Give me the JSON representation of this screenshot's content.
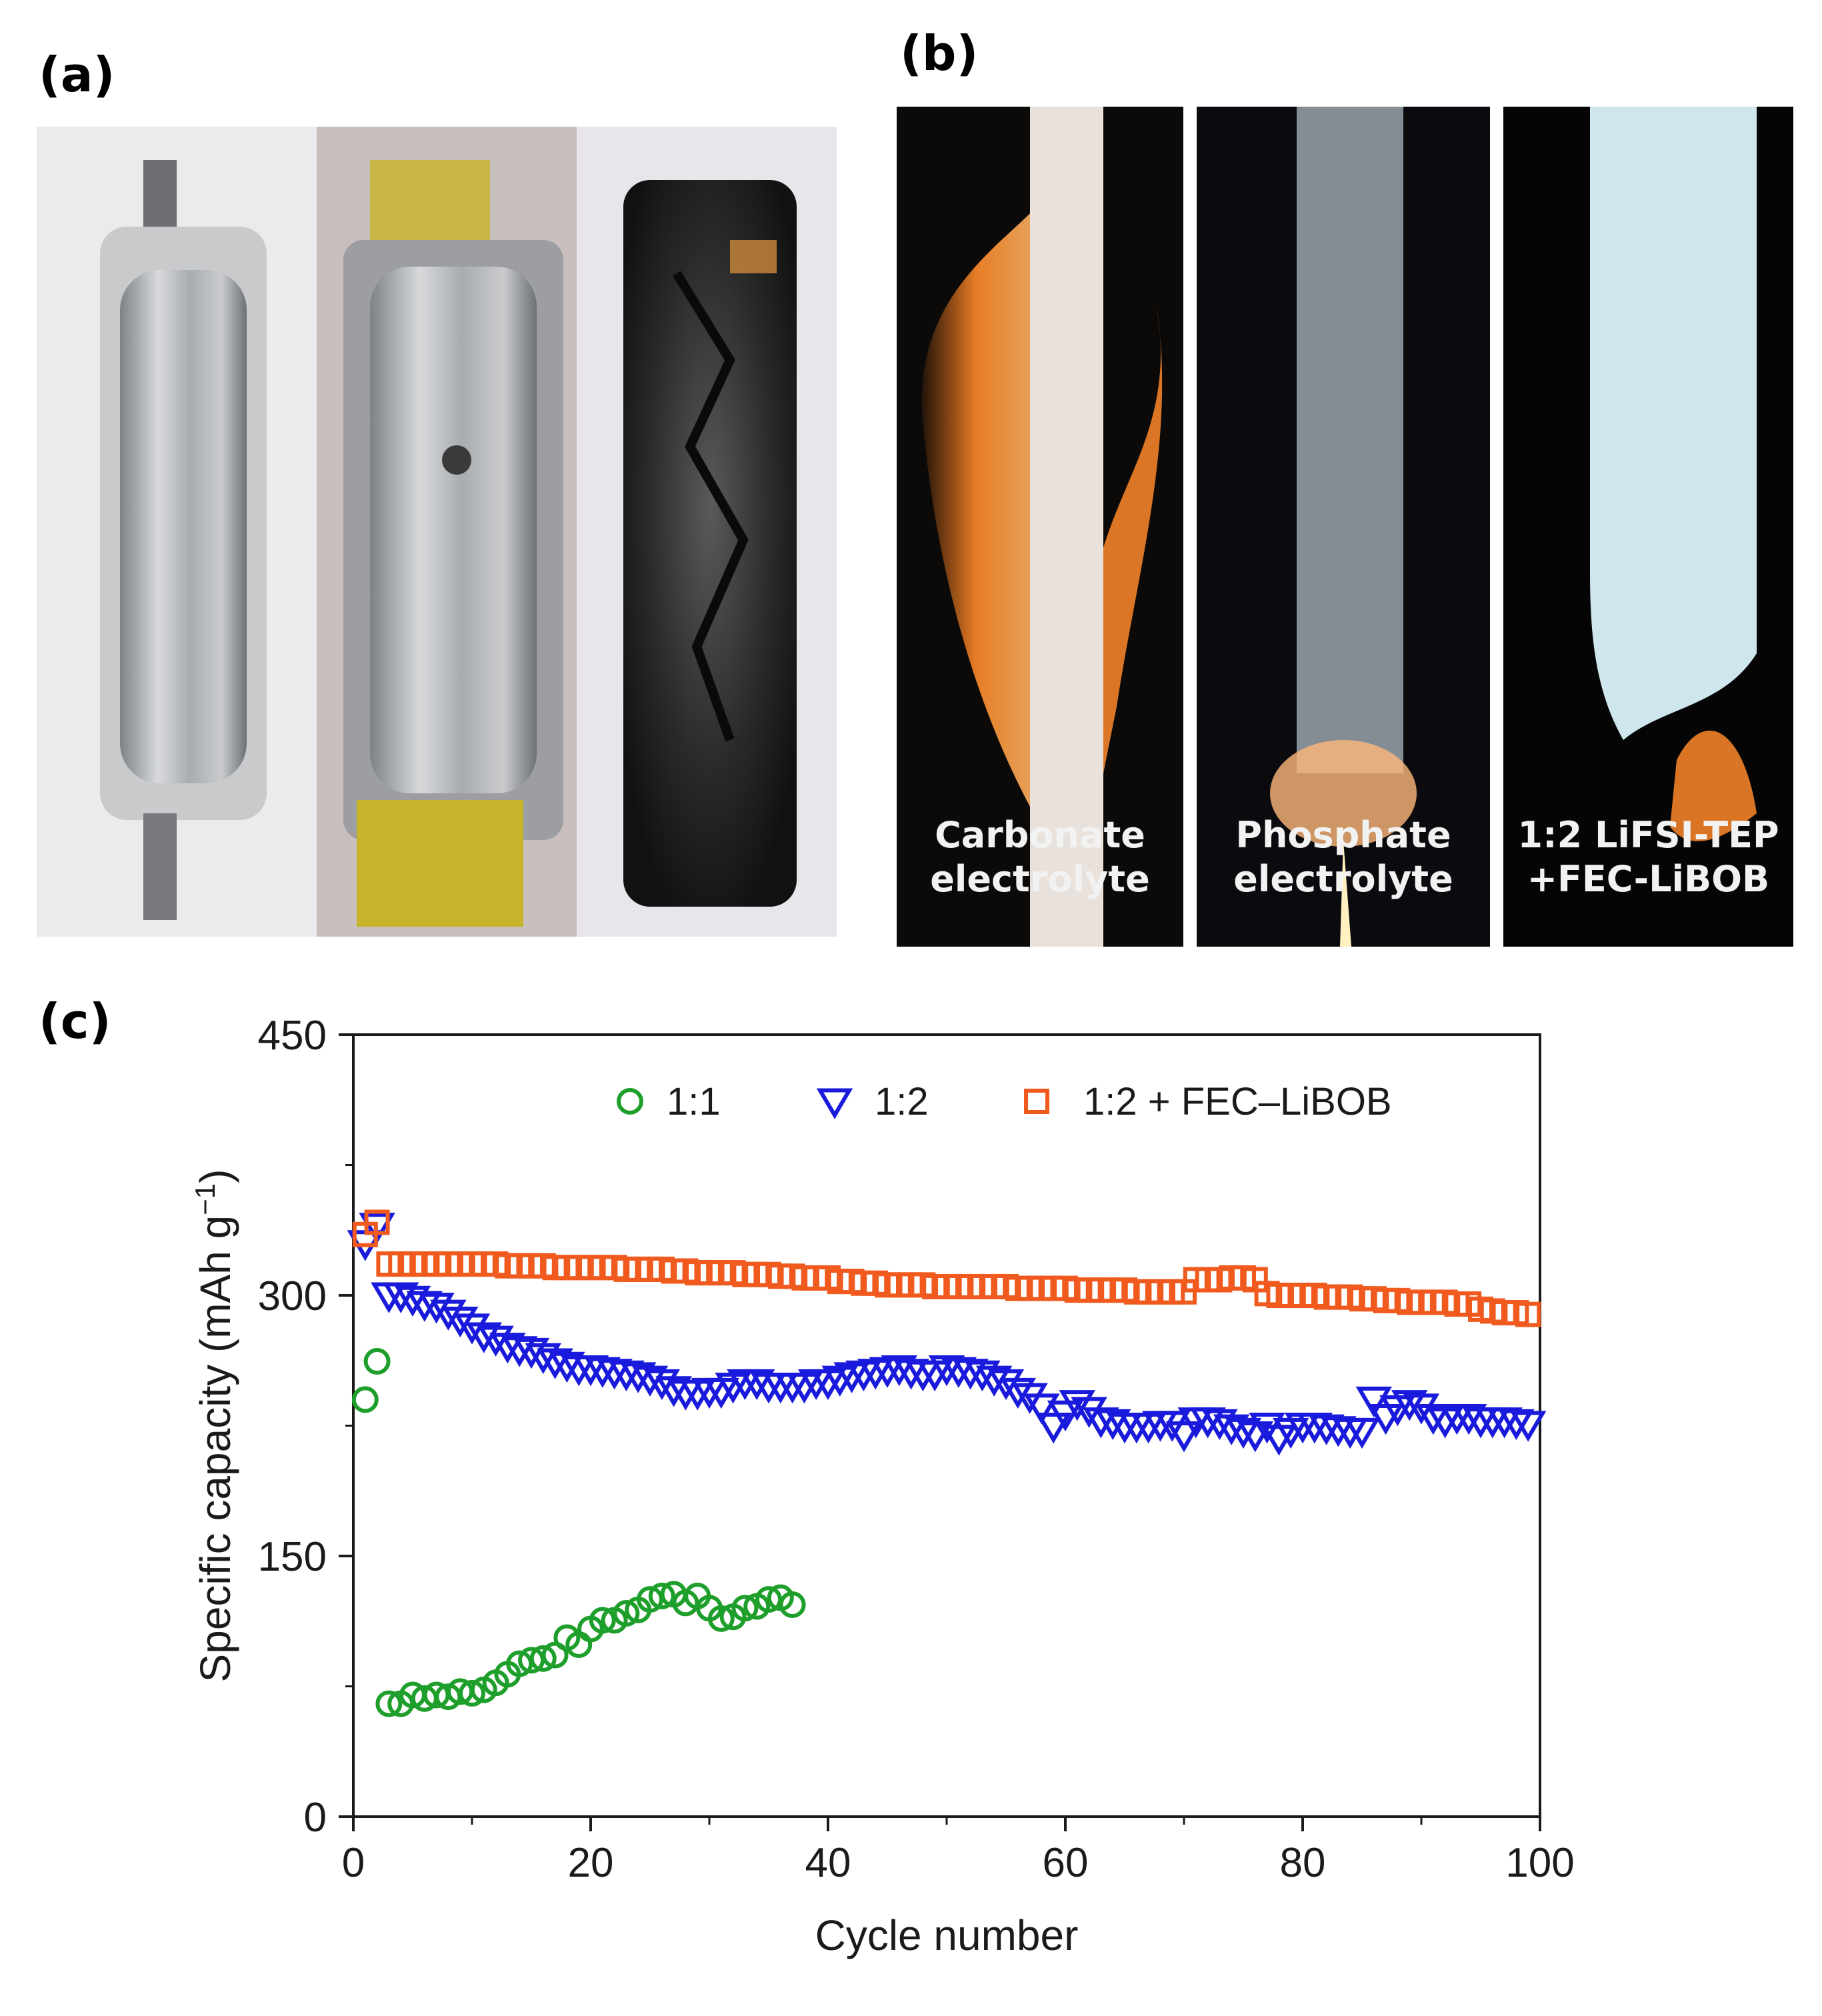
{
  "panels": {
    "a": {
      "label": "(a)"
    },
    "b": {
      "label": "(b)",
      "captions": [
        {
          "line1": "Carbonate",
          "line2": "electrolyte"
        },
        {
          "line1": "Phosphate",
          "line2": "electrolyte"
        },
        {
          "line1": "1:2 LiFSI-TEP",
          "line2": "+FEC-LiBOB"
        }
      ]
    },
    "c": {
      "label": "(c)"
    }
  },
  "chart_data": {
    "type": "scatter",
    "xlabel": "Cycle number",
    "ylabel": "Specific capacity (mAh g",
    "ylabel_sup": "−1",
    "ylabel_close": ")",
    "xlim": [
      0,
      100
    ],
    "ylim": [
      0,
      450
    ],
    "xticks": [
      0,
      20,
      40,
      60,
      80,
      100
    ],
    "yticks": [
      0,
      150,
      300,
      450
    ],
    "legend_position": "top-right",
    "series": [
      {
        "name": "1:1",
        "marker": "circle",
        "color": "#1e9e2a",
        "x": [
          1,
          2,
          3,
          4,
          5,
          6,
          7,
          8,
          9,
          10,
          11,
          12,
          13,
          14,
          15,
          16,
          17,
          18,
          19,
          20,
          21,
          22,
          23,
          24,
          25,
          26,
          27,
          28,
          29,
          30,
          31,
          32,
          33,
          34,
          35,
          36,
          37
        ],
        "y": [
          240,
          262,
          65,
          65,
          70,
          68,
          70,
          69,
          72,
          71,
          73,
          77,
          82,
          88,
          90,
          91,
          93,
          103,
          99,
          108,
          113,
          113,
          117,
          119,
          125,
          127,
          128,
          123,
          127,
          120,
          114,
          115,
          120,
          121,
          125,
          126,
          122
        ]
      },
      {
        "name": "1:2",
        "marker": "triangle-down",
        "color": "#1a1adc",
        "x": [
          1,
          2,
          3,
          4,
          5,
          6,
          7,
          8,
          9,
          10,
          11,
          12,
          13,
          14,
          15,
          16,
          17,
          18,
          19,
          20,
          21,
          22,
          23,
          24,
          25,
          26,
          27,
          28,
          29,
          30,
          31,
          32,
          33,
          34,
          35,
          36,
          37,
          38,
          39,
          40,
          41,
          42,
          43,
          44,
          45,
          46,
          47,
          48,
          49,
          50,
          51,
          52,
          53,
          54,
          55,
          56,
          57,
          58,
          59,
          60,
          61,
          62,
          63,
          64,
          65,
          66,
          67,
          68,
          69,
          70,
          71,
          72,
          73,
          74,
          75,
          76,
          77,
          78,
          79,
          80,
          81,
          82,
          83,
          84,
          85,
          86,
          87,
          88,
          89,
          90,
          91,
          92,
          93,
          94,
          95,
          96,
          97,
          98,
          99
        ],
        "y": [
          330,
          340,
          300,
          300,
          298,
          295,
          294,
          290,
          286,
          282,
          277,
          275,
          271,
          269,
          268,
          265,
          262,
          260,
          258,
          258,
          257,
          256,
          255,
          254,
          252,
          250,
          246,
          244,
          244,
          245,
          245,
          248,
          250,
          250,
          248,
          248,
          248,
          248,
          250,
          250,
          252,
          254,
          255,
          256,
          257,
          258,
          256,
          255,
          255,
          258,
          257,
          256,
          255,
          252,
          250,
          245,
          242,
          236,
          225,
          232,
          238,
          234,
          228,
          227,
          225,
          225,
          225,
          226,
          226,
          220,
          228,
          228,
          227,
          224,
          222,
          220,
          225,
          218,
          222,
          225,
          225,
          224,
          223,
          222,
          222,
          240,
          230,
          235,
          238,
          236,
          230,
          228,
          230,
          230,
          228,
          228,
          228,
          227,
          226
        ]
      },
      {
        "name": "1:2 + FEC–LiBOB",
        "marker": "square",
        "color": "#f05a1e",
        "x": [
          1,
          2,
          3,
          4,
          5,
          6,
          7,
          8,
          9,
          10,
          11,
          12,
          13,
          14,
          15,
          16,
          17,
          18,
          19,
          20,
          21,
          22,
          23,
          24,
          25,
          26,
          27,
          28,
          29,
          30,
          31,
          32,
          33,
          34,
          35,
          36,
          37,
          38,
          39,
          40,
          41,
          42,
          43,
          44,
          45,
          46,
          47,
          48,
          49,
          50,
          51,
          52,
          53,
          54,
          55,
          56,
          57,
          58,
          59,
          60,
          61,
          62,
          63,
          64,
          65,
          66,
          67,
          68,
          69,
          70,
          71,
          72,
          73,
          74,
          75,
          76,
          77,
          78,
          79,
          80,
          81,
          82,
          83,
          84,
          85,
          86,
          87,
          88,
          89,
          90,
          91,
          92,
          93,
          94,
          95,
          96,
          97,
          98,
          99
        ],
        "y": [
          335,
          342,
          318,
          318,
          318,
          318,
          318,
          318,
          318,
          318,
          318,
          318,
          317,
          317,
          317,
          317,
          316,
          316,
          316,
          316,
          316,
          316,
          315,
          315,
          315,
          315,
          314,
          314,
          313,
          313,
          313,
          313,
          312,
          312,
          312,
          311,
          311,
          310,
          310,
          310,
          308,
          308,
          307,
          307,
          306,
          306,
          306,
          306,
          305,
          305,
          305,
          305,
          305,
          305,
          305,
          304,
          304,
          304,
          304,
          304,
          303,
          303,
          303,
          303,
          303,
          302,
          302,
          302,
          302,
          302,
          309,
          309,
          309,
          310,
          310,
          309,
          301,
          300,
          300,
          300,
          300,
          299,
          299,
          299,
          298,
          298,
          297,
          297,
          296,
          296,
          296,
          296,
          295,
          295,
          292,
          291,
          290,
          290,
          289
        ]
      }
    ]
  }
}
